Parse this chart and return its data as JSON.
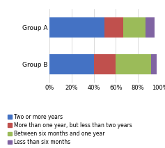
{
  "groups": [
    "Group A",
    "Group B"
  ],
  "categories": [
    "Two or more years",
    "More than one year, but less than two years",
    "Between six months and one year",
    "Less than six months"
  ],
  "values": [
    [
      50,
      17,
      20,
      8
    ],
    [
      40,
      20,
      32,
      5
    ]
  ],
  "colors": [
    "#4472c4",
    "#c0504d",
    "#9bbb59",
    "#8064a2"
  ],
  "xlim": [
    0,
    100
  ],
  "xticks": [
    0,
    20,
    40,
    60,
    80,
    100
  ],
  "xticklabels": [
    "0%",
    "20%",
    "40%",
    "60%",
    "80%",
    "100%"
  ],
  "background_color": "#ffffff",
  "bar_height": 0.55,
  "legend_fontsize": 5.5,
  "tick_fontsize": 6.0,
  "label_fontsize": 6.5,
  "grid_color": "#cccccc"
}
